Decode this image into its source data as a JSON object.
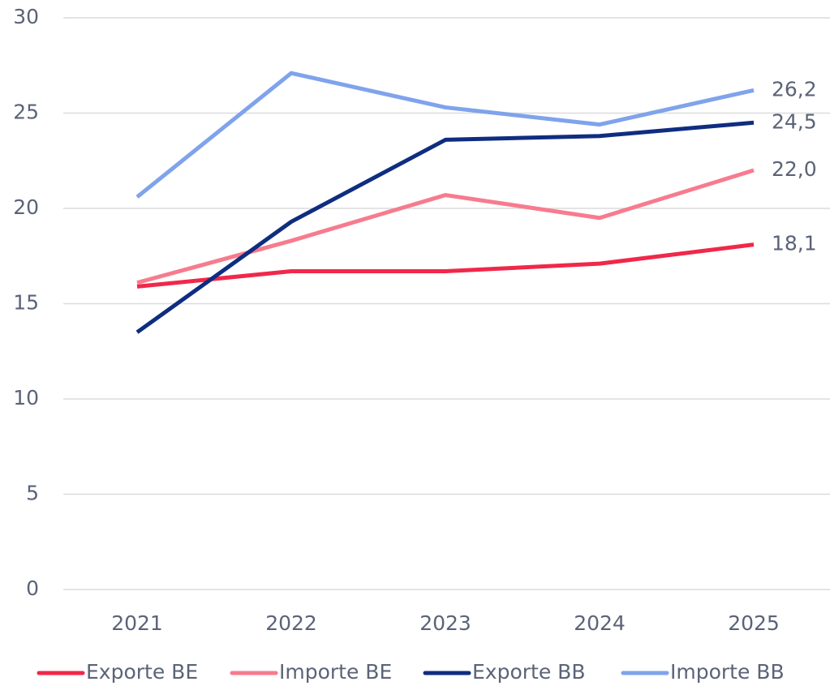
{
  "chart_data": {
    "type": "line",
    "categories": [
      "2021",
      "2022",
      "2023",
      "2024",
      "2025"
    ],
    "series": [
      {
        "name": "Exporte BE",
        "color": "#f0284a",
        "values": [
          15.9,
          16.7,
          16.7,
          17.1,
          18.1
        ],
        "value_labels": [
          null,
          null,
          null,
          null,
          "18,1"
        ]
      },
      {
        "name": "Importe BE",
        "color": "#f77b8e",
        "values": [
          16.1,
          18.3,
          20.7,
          19.5,
          22.0
        ],
        "value_labels": [
          null,
          null,
          null,
          null,
          "22,0"
        ]
      },
      {
        "name": "Exporte BB",
        "color": "#0f2d80",
        "values": [
          13.5,
          19.3,
          23.6,
          23.8,
          24.5
        ],
        "value_labels": [
          null,
          null,
          null,
          null,
          "24,5"
        ]
      },
      {
        "name": "Importe BB",
        "color": "#7fa3ec",
        "values": [
          20.6,
          27.1,
          25.3,
          24.4,
          26.2
        ],
        "value_labels": [
          null,
          null,
          null,
          null,
          "26,2"
        ]
      }
    ],
    "ylim": [
      0,
      30
    ],
    "yticks": [
      0,
      5,
      10,
      15,
      20,
      25,
      30
    ],
    "grid": true,
    "legend": "bottom"
  }
}
